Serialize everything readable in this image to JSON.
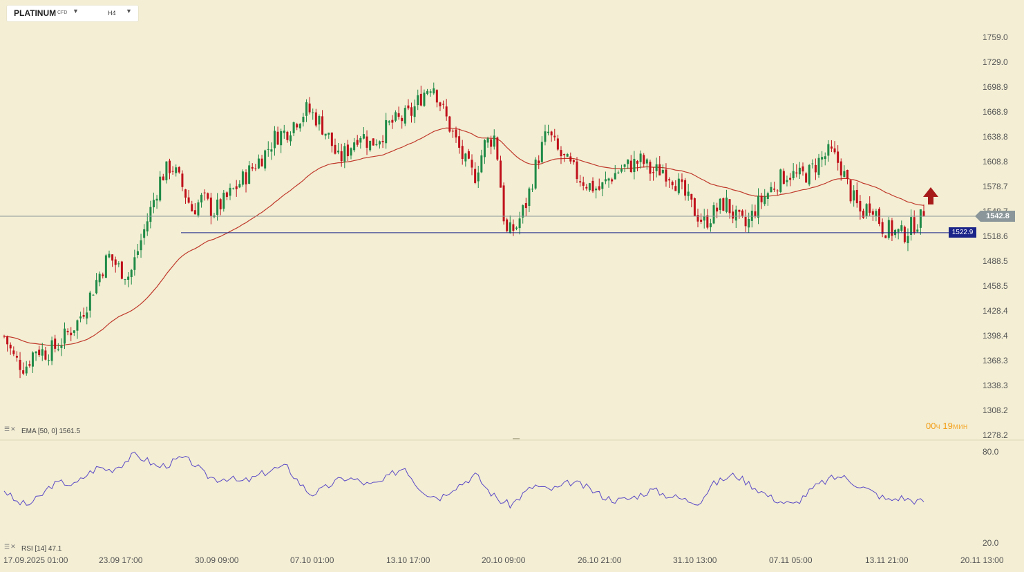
{
  "toolbar": {
    "symbol": "PLATINUM",
    "symbol_type": "CFD",
    "timeframe": "H4"
  },
  "indicators": {
    "ema_label": "EMA [50, 0] 1561.5",
    "rsi_label": "RSI [14] 47.1"
  },
  "timer": {
    "hours": "00",
    "hours_unit": "ч",
    "minutes": "19",
    "minutes_unit": "мин"
  },
  "price_tags": {
    "last": "1542.8",
    "level": "1522.9"
  },
  "colors": {
    "background": "#f3eed4",
    "bull": "#1f8a47",
    "bear": "#c0111b",
    "ema": "#c0392b",
    "rsi": "#5a48c6",
    "level_line": "#1a2489",
    "last_line": "#8a9699",
    "arrow": "#a71b1b"
  },
  "chart_data": [
    {
      "type": "candlestick",
      "symbol": "PLATINUM",
      "timeframe": "H4",
      "y_ticks": [
        "1759.0",
        "1729.0",
        "1698.9",
        "1668.9",
        "1638.8",
        "1608.8",
        "1578.7",
        "1548.7",
        "1518.6",
        "1488.5",
        "1458.5",
        "1428.4",
        "1398.4",
        "1368.3",
        "1338.3",
        "1308.2",
        "1278.2"
      ],
      "ylim": [
        1278.2,
        1759.0
      ],
      "x_ticks": [
        "17.09.2025  01:00",
        "23.09  17:00",
        "30.09  09:00",
        "07.10  01:00",
        "13.10  17:00",
        "20.10  09:00",
        "26.10  21:00",
        "31.10  13:00",
        "07.11  05:00",
        "13.11  21:00",
        "20.11  13:00"
      ],
      "close_path": [
        1398,
        1370,
        1360,
        1383,
        1378,
        1385,
        1400,
        1415,
        1440,
        1470,
        1495,
        1480,
        1470,
        1510,
        1550,
        1590,
        1605,
        1580,
        1550,
        1565,
        1548,
        1560,
        1575,
        1590,
        1605,
        1620,
        1640,
        1645,
        1660,
        1672,
        1660,
        1640,
        1610,
        1625,
        1645,
        1630,
        1640,
        1655,
        1660,
        1668,
        1690,
        1705,
        1670,
        1640,
        1610,
        1590,
        1630,
        1640,
        1520,
        1530,
        1560,
        1610,
        1645,
        1620,
        1605,
        1590,
        1580,
        1575,
        1590,
        1600,
        1605,
        1610,
        1595,
        1600,
        1590,
        1570,
        1550,
        1535,
        1548,
        1560,
        1540,
        1530,
        1555,
        1570,
        1585,
        1595,
        1590,
        1595,
        1610,
        1620,
        1605,
        1570,
        1545,
        1560,
        1530,
        1525,
        1520,
        1533,
        1542.8
      ],
      "ema_period": 50,
      "ema_last": 1561.5,
      "horizontal_level": 1522.9,
      "last_price": 1542.8,
      "signal_arrow": "up"
    },
    {
      "type": "line",
      "name": "RSI [14]",
      "y_ticks": [
        "80.0",
        "20.0"
      ],
      "ylim": [
        20.0,
        80.0
      ],
      "last_value": 47.1,
      "values": [
        55,
        47,
        45,
        50,
        58,
        60,
        58,
        65,
        70,
        68,
        72,
        78,
        75,
        70,
        72,
        76,
        73,
        65,
        62,
        63,
        60,
        62,
        66,
        69,
        70,
        60,
        52,
        55,
        60,
        63,
        61,
        58,
        60,
        66,
        70,
        58,
        52,
        50,
        56,
        60,
        65,
        55,
        48,
        45,
        52,
        58,
        55,
        56,
        60,
        58,
        54,
        50,
        48,
        49,
        52,
        55,
        52,
        50,
        48,
        47,
        58,
        62,
        65,
        60,
        55,
        50,
        47,
        45,
        52,
        58,
        62,
        64,
        60,
        56,
        52,
        48,
        50,
        48,
        47.1
      ]
    }
  ]
}
